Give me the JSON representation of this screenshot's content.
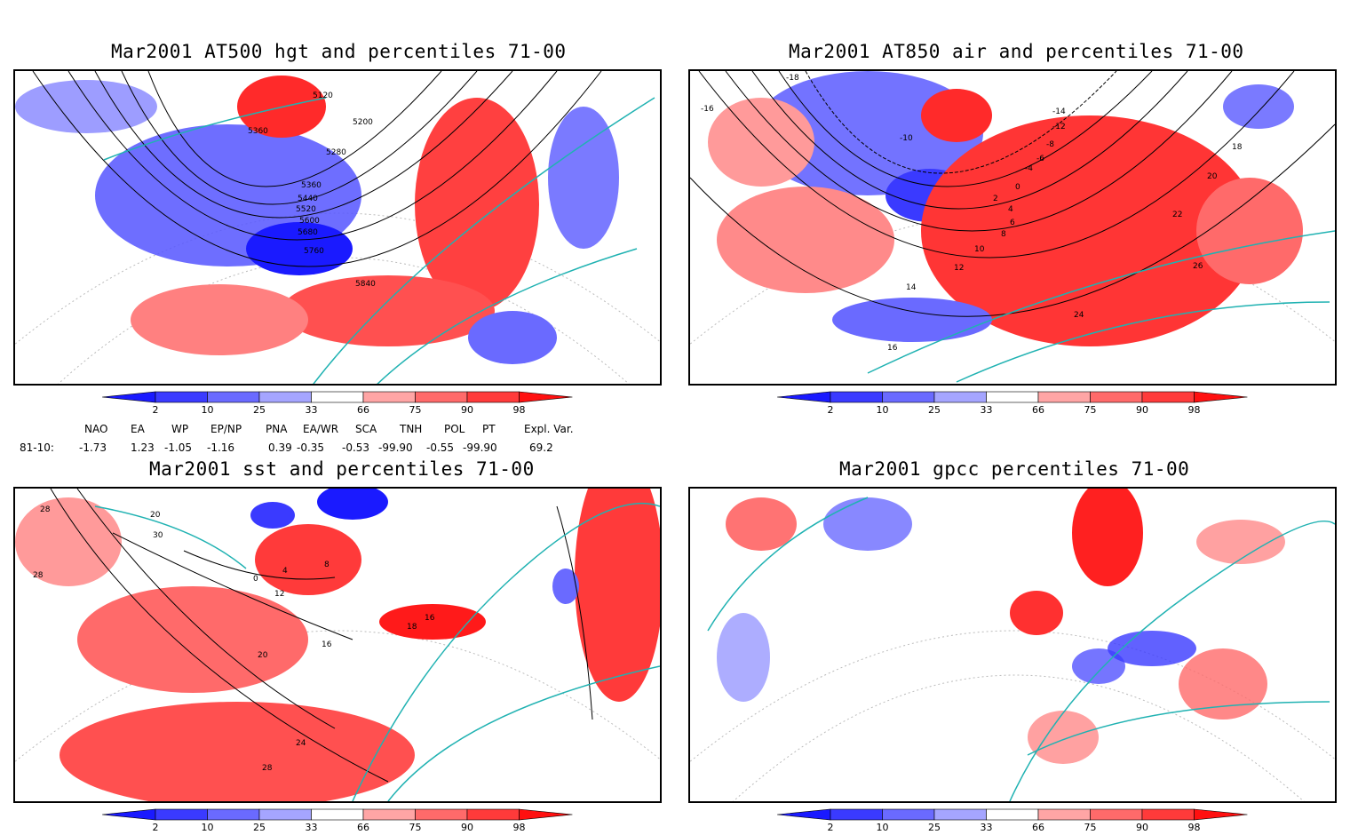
{
  "panels": [
    {
      "title": "Mar2001 AT500 hgt and percentiles 71-00",
      "contour_labels": [
        "5120",
        "5200",
        "5360",
        "5280",
        "5360",
        "5440",
        "5520",
        "5600",
        "5680",
        "5760",
        "5840"
      ]
    },
    {
      "title": "Mar2001 AT850 air and percentiles 71-00",
      "contour_labels": [
        "-18",
        "-16",
        "-14",
        "-12",
        "-10",
        "-8",
        "-6",
        "-4",
        "0",
        "2",
        "4",
        "6",
        "8",
        "10",
        "12",
        "14",
        "16",
        "18",
        "20",
        "22",
        "24",
        "26"
      ]
    },
    {
      "title": "Mar2001 sst and percentiles 71-00",
      "contour_labels": [
        "28",
        "28",
        "20",
        "30",
        "0",
        "4",
        "8",
        "12",
        "16",
        "20",
        "24",
        "28",
        "18",
        "16"
      ]
    },
    {
      "title": "Mar2001 gpcc percentiles 71-00",
      "contour_labels": []
    }
  ],
  "colorbar": {
    "ticks": [
      "2",
      "10",
      "25",
      "33",
      "66",
      "75",
      "90",
      "98"
    ],
    "colors": [
      "#1a1aff",
      "#3a3aff",
      "#6a6aff",
      "#a5a5ff",
      "#ffffff",
      "#ffa5a5",
      "#ff6a6a",
      "#ff3a3a",
      "#ff1010"
    ]
  },
  "indices": {
    "headers": [
      "NAO",
      "EA",
      "WP",
      "EP/NP",
      "PNA",
      "EA/WR",
      "SCA",
      "TNH",
      "POL",
      "PT",
      "Expl. Var."
    ],
    "row_label": "81-10:",
    "values": [
      "-1.73",
      "1.23",
      "-1.05",
      "-1.16",
      "0.39",
      "-0.35",
      "-0.53",
      "-99.90",
      "-0.55",
      "-99.90",
      "69.2"
    ]
  },
  "colors": {
    "coast": "#20b2b2",
    "contour": "#000000",
    "blue": "#3a3aff",
    "red": "#ff2020"
  }
}
